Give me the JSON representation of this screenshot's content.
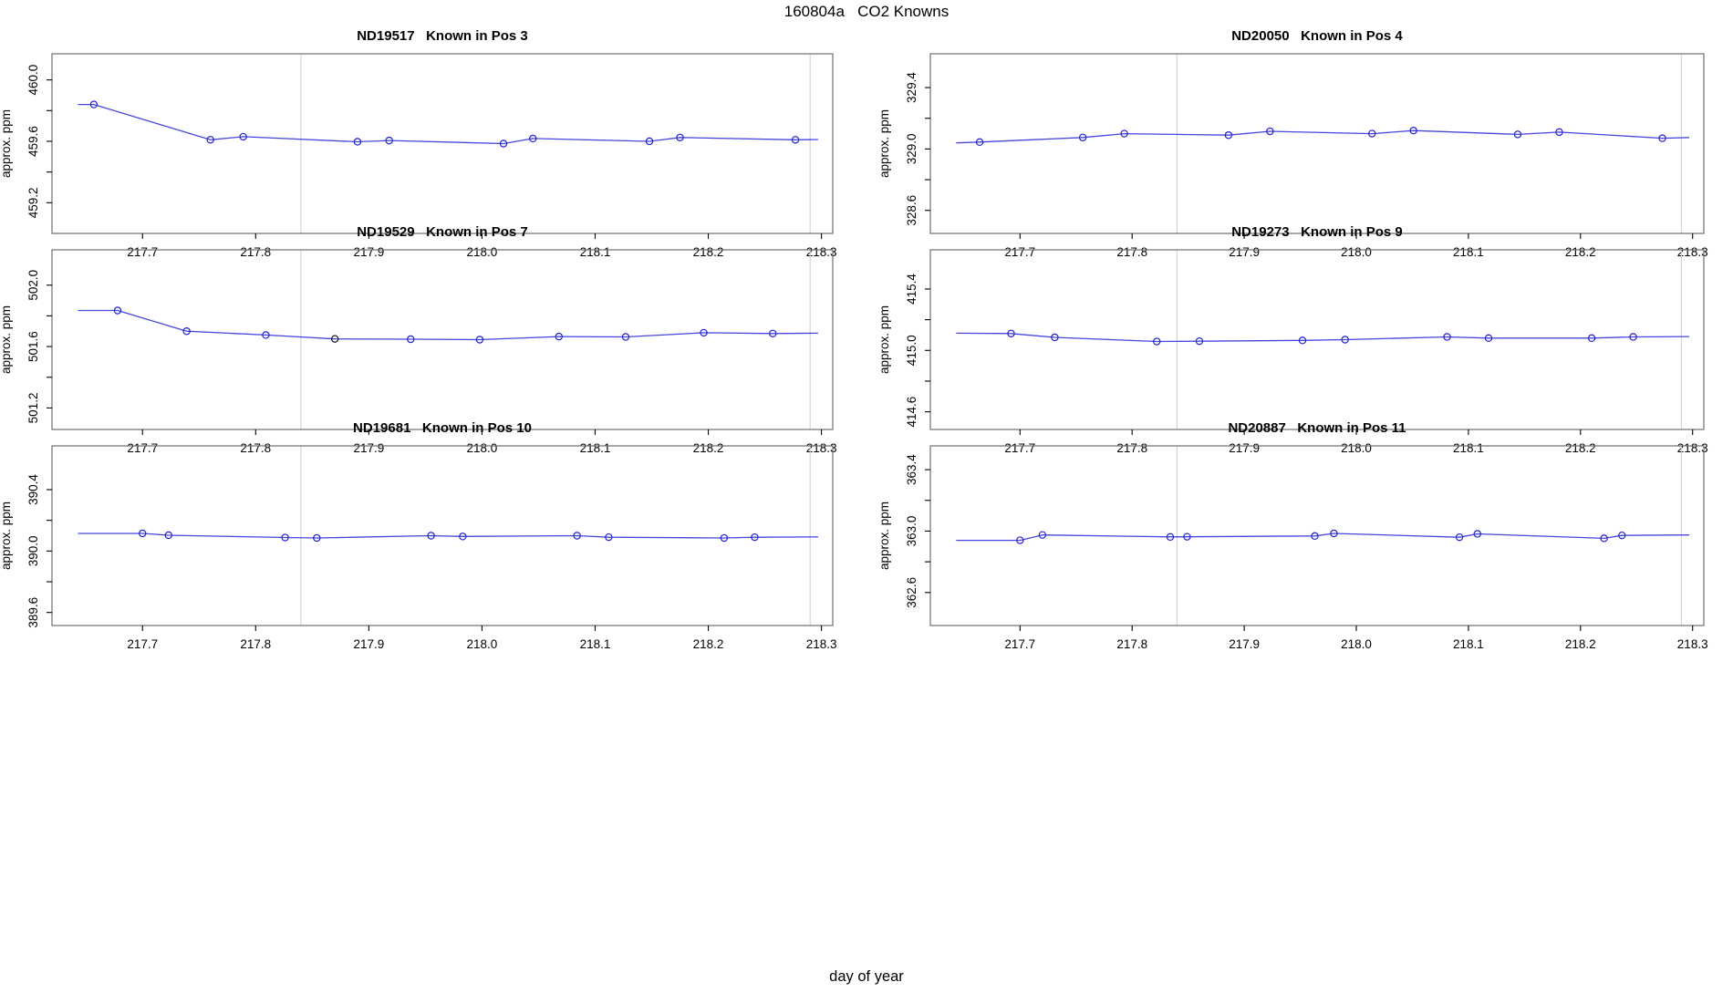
{
  "figure": {
    "title": "160804a   CO2 Knowns",
    "xlabel": "day of year",
    "ylabel": "approx. ppm"
  },
  "colors": {
    "line": "#4747dd",
    "point": "#2222cc",
    "special_point": "#10101e",
    "event_line": "#d2d2d2",
    "panel_border": "#6e6e6e",
    "axis_tick": "#000000",
    "text": "#000000"
  },
  "chart_data": [
    {
      "type": "line",
      "title": "ND19517   Known in Pos 3",
      "tank_id": "ND19517",
      "position_label": "Known in Pos 3",
      "ylabel": "approx. ppm",
      "xlim": [
        217.62,
        218.31
      ],
      "ylim": [
        459.0,
        460.17
      ],
      "x_ticks": [
        217.7,
        217.8,
        217.9,
        218.0,
        218.1,
        218.2,
        218.3
      ],
      "x_tick_labels": [
        "217.7",
        "217.8",
        "217.9",
        "218.0",
        "218.1",
        "218.2",
        "218.3"
      ],
      "y_ticks": [
        459.2,
        459.4,
        459.6,
        459.8,
        460.0
      ],
      "y_tick_labels": [
        "459.2",
        "",
        "459.6",
        "",
        "460.0"
      ],
      "vlines": [
        217.84,
        218.29
      ],
      "line_start": {
        "x": 217.643,
        "y": 459.84
      },
      "line_end": {
        "x": 218.297,
        "y": 459.612
      },
      "x": [
        217.657,
        217.76,
        217.789,
        217.89,
        217.918,
        218.019,
        218.045,
        218.148,
        218.175,
        218.277
      ],
      "y": [
        459.84,
        459.61,
        459.63,
        459.597,
        459.605,
        459.585,
        459.618,
        459.6,
        459.625,
        459.61
      ],
      "special_point_index": null
    },
    {
      "type": "line",
      "title": "ND20050   Known in Pos 4",
      "tank_id": "ND20050",
      "position_label": "Known in Pos 4",
      "ylabel": "approx. ppm",
      "xlim": [
        217.62,
        218.31
      ],
      "ylim": [
        328.45,
        329.62
      ],
      "x_ticks": [
        217.7,
        217.8,
        217.9,
        218.0,
        218.1,
        218.2,
        218.3
      ],
      "x_tick_labels": [
        "217.7",
        "217.8",
        "217.9",
        "218.0",
        "218.1",
        "218.2",
        "218.3"
      ],
      "y_ticks": [
        328.6,
        328.8,
        329.0,
        329.2,
        329.4
      ],
      "y_tick_labels": [
        "328.6",
        "",
        "329.0",
        "",
        "329.4"
      ],
      "vlines": [
        217.84,
        218.29
      ],
      "line_start": {
        "x": 217.643,
        "y": 329.04
      },
      "line_end": {
        "x": 218.297,
        "y": 329.075
      },
      "x": [
        217.664,
        217.756,
        217.793,
        217.886,
        217.923,
        218.014,
        218.051,
        218.144,
        218.181,
        218.273
      ],
      "y": [
        329.045,
        329.075,
        329.1,
        329.09,
        329.115,
        329.1,
        329.12,
        329.095,
        329.11,
        329.07
      ],
      "special_point_index": null
    },
    {
      "type": "line",
      "title": "ND19529   Known in Pos 7",
      "tank_id": "ND19529",
      "position_label": "Known in Pos 7",
      "ylabel": "approx. ppm",
      "xlim": [
        217.62,
        218.31
      ],
      "ylim": [
        501.06,
        502.23
      ],
      "x_ticks": [
        217.7,
        217.8,
        217.9,
        218.0,
        218.1,
        218.2,
        218.3
      ],
      "x_tick_labels": [
        "217.7",
        "217.8",
        "217.9",
        "218.0",
        "218.1",
        "218.2",
        "218.3"
      ],
      "y_ticks": [
        501.2,
        501.4,
        501.6,
        501.8,
        502.0
      ],
      "y_tick_labels": [
        "501.2",
        "",
        "501.6",
        "",
        "502.0"
      ],
      "vlines": [
        217.84,
        218.29
      ],
      "line_start": {
        "x": 217.643,
        "y": 501.835
      },
      "line_end": {
        "x": 218.297,
        "y": 501.687
      },
      "x": [
        217.678,
        217.739,
        217.809,
        217.87,
        217.937,
        217.998,
        218.068,
        218.127,
        218.196,
        218.257
      ],
      "y": [
        501.835,
        501.7,
        501.675,
        501.65,
        501.648,
        501.645,
        501.665,
        501.663,
        501.69,
        501.685
      ],
      "special_point_index": 3
    },
    {
      "type": "line",
      "title": "ND19273   Known in Pos 9",
      "tank_id": "ND19273",
      "position_label": "Known in Pos 9",
      "ylabel": "approx. ppm",
      "xlim": [
        217.62,
        218.31
      ],
      "ylim": [
        414.485,
        415.655
      ],
      "x_ticks": [
        217.7,
        217.8,
        217.9,
        218.0,
        218.1,
        218.2,
        218.3
      ],
      "x_tick_labels": [
        "217.7",
        "217.8",
        "217.9",
        "218.0",
        "218.1",
        "218.2",
        "218.3"
      ],
      "y_ticks": [
        414.6,
        414.8,
        415.0,
        415.2,
        415.4
      ],
      "y_tick_labels": [
        "414.6",
        "",
        "415.0",
        "",
        "415.4"
      ],
      "vlines": [
        217.84,
        218.29
      ],
      "line_start": {
        "x": 217.643,
        "y": 415.112
      },
      "line_end": {
        "x": 218.297,
        "y": 415.09
      },
      "x": [
        217.692,
        217.731,
        217.822,
        217.86,
        217.952,
        217.99,
        218.081,
        218.118,
        218.21,
        218.247
      ],
      "y": [
        415.11,
        415.085,
        415.058,
        415.06,
        415.065,
        415.07,
        415.088,
        415.08,
        415.08,
        415.088
      ],
      "special_point_index": null
    },
    {
      "type": "line",
      "title": "ND19681   Known in Pos 10",
      "tank_id": "ND19681",
      "position_label": "Known in Pos 10",
      "ylabel": "approx. ppm",
      "xlim": [
        217.62,
        218.31
      ],
      "ylim": [
        389.515,
        390.685
      ],
      "x_ticks": [
        217.7,
        217.8,
        217.9,
        218.0,
        218.1,
        218.2,
        218.3
      ],
      "x_tick_labels": [
        "217.7",
        "217.8",
        "217.9",
        "218.0",
        "218.1",
        "218.2",
        "218.3"
      ],
      "y_ticks": [
        389.6,
        389.8,
        390.0,
        390.2,
        390.4
      ],
      "y_tick_labels": [
        "389.6",
        "",
        "390.0",
        "",
        "390.4"
      ],
      "vlines": [
        217.84,
        218.29
      ],
      "line_start": {
        "x": 217.643,
        "y": 390.115
      },
      "line_end": {
        "x": 218.297,
        "y": 390.092
      },
      "x": [
        217.7,
        217.723,
        217.826,
        217.854,
        217.955,
        217.983,
        218.084,
        218.112,
        218.214,
        218.241
      ],
      "y": [
        390.115,
        390.103,
        390.088,
        390.085,
        390.1,
        390.095,
        390.1,
        390.09,
        390.085,
        390.09
      ],
      "special_point_index": null
    },
    {
      "type": "line",
      "title": "ND20887   Known in Pos 11",
      "tank_id": "ND20887",
      "position_label": "Known in Pos 11",
      "ylabel": "approx. ppm",
      "xlim": [
        217.62,
        218.31
      ],
      "ylim": [
        362.385,
        363.555
      ],
      "x_ticks": [
        217.7,
        217.8,
        217.9,
        218.0,
        218.1,
        218.2,
        218.3
      ],
      "x_tick_labels": [
        "217.7",
        "217.8",
        "217.9",
        "218.0",
        "218.1",
        "218.2",
        "218.3"
      ],
      "y_ticks": [
        362.6,
        362.8,
        363.0,
        363.2,
        363.4
      ],
      "y_tick_labels": [
        "362.6",
        "",
        "363.0",
        "",
        "363.4"
      ],
      "vlines": [
        217.84,
        218.29
      ],
      "line_start": {
        "x": 217.643,
        "y": 362.94
      },
      "line_end": {
        "x": 218.297,
        "y": 362.975
      },
      "x": [
        217.7,
        217.72,
        217.834,
        217.849,
        217.963,
        217.98,
        218.092,
        218.108,
        218.221,
        218.237
      ],
      "y": [
        362.94,
        362.975,
        362.962,
        362.963,
        362.968,
        362.985,
        362.96,
        362.982,
        362.953,
        362.972
      ],
      "special_point_index": null
    }
  ]
}
